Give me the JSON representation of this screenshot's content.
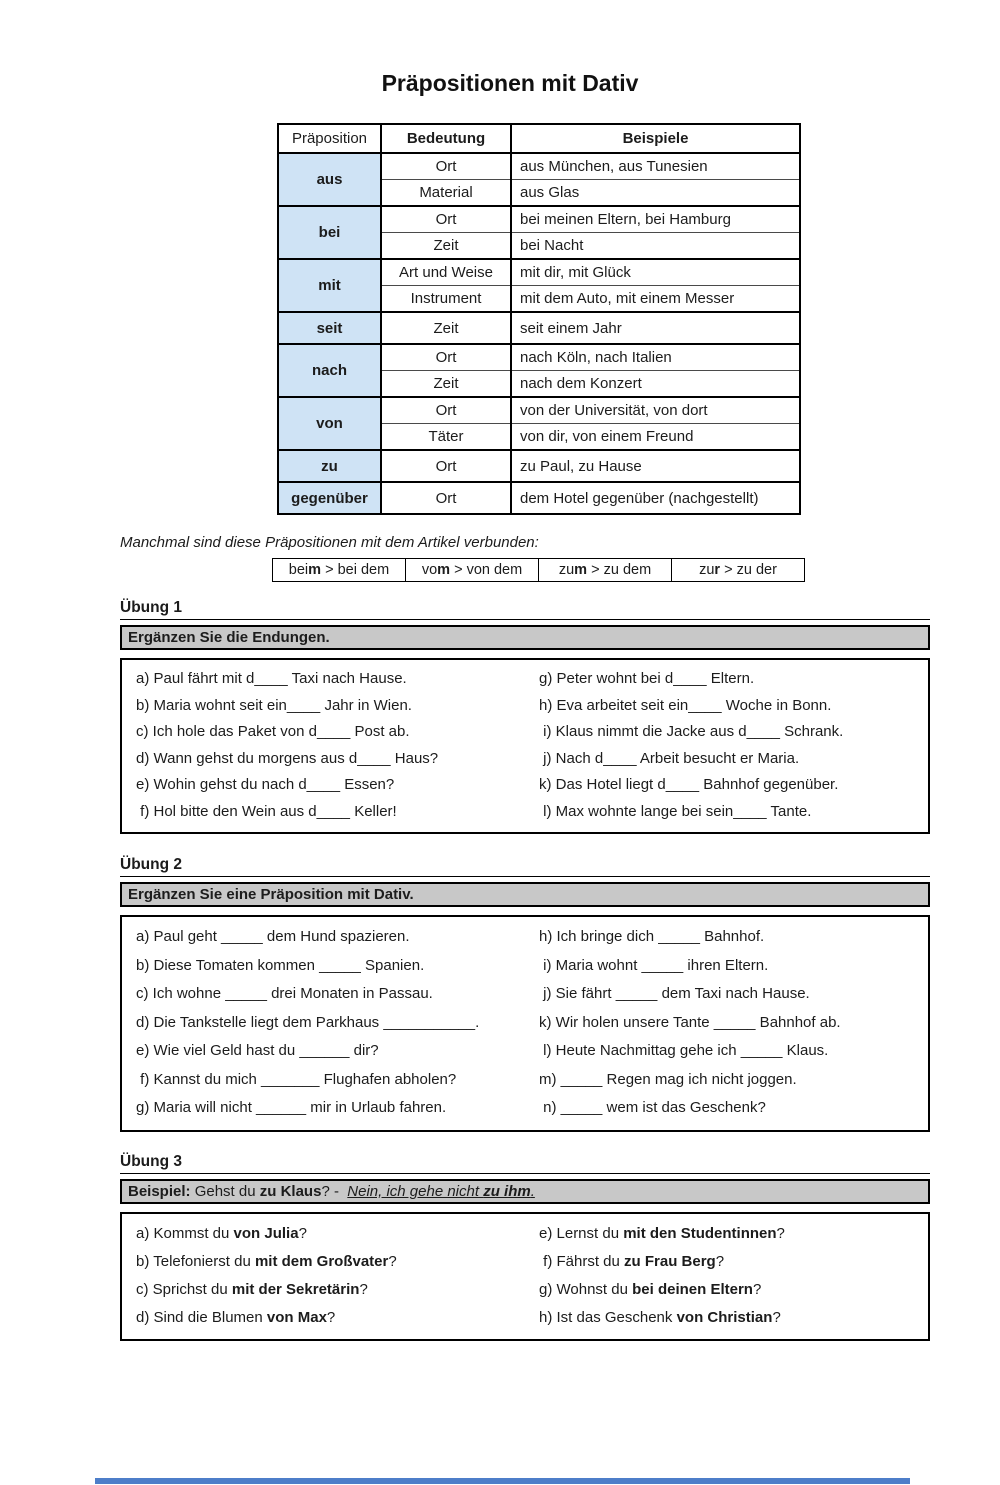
{
  "title": "Präpositionen mit Dativ",
  "table": {
    "headers": [
      "Präposition",
      "Bedeutung",
      "Beispiele"
    ],
    "groups": [
      {
        "prep": "aus",
        "rows": [
          [
            "Ort",
            "aus München, aus Tunesien"
          ],
          [
            "Material",
            "aus Glas"
          ]
        ]
      },
      {
        "prep": "bei",
        "rows": [
          [
            "Ort",
            "bei meinen Eltern, bei Hamburg"
          ],
          [
            "Zeit",
            "bei Nacht"
          ]
        ]
      },
      {
        "prep": "mit",
        "rows": [
          [
            "Art und Weise",
            "mit dir, mit Glück"
          ],
          [
            "Instrument",
            "mit dem Auto, mit einem Messer"
          ]
        ]
      },
      {
        "prep": "seit",
        "rows": [
          [
            "Zeit",
            "seit einem Jahr"
          ]
        ]
      },
      {
        "prep": "nach",
        "rows": [
          [
            "Ort",
            "nach Köln, nach Italien"
          ],
          [
            "Zeit",
            "nach dem Konzert"
          ]
        ]
      },
      {
        "prep": "von",
        "rows": [
          [
            "Ort",
            "von der Universität, von dort"
          ],
          [
            "Täter",
            "von dir, von einem Freund"
          ]
        ]
      },
      {
        "prep": "zu",
        "rows": [
          [
            "Ort",
            "zu Paul, zu Hause"
          ]
        ]
      },
      {
        "prep": "gegenüber",
        "rows": [
          [
            "Ort",
            "dem Hotel gegenüber (nachgestellt)"
          ]
        ]
      }
    ]
  },
  "note": "Manchmal sind diese Präpositionen mit dem Artikel verbunden:",
  "contractions": [
    {
      "pre": "bei",
      "bold": "m",
      "rest": " > bei dem"
    },
    {
      "pre": "vo",
      "bold": "m",
      "rest": " > von dem"
    },
    {
      "pre": "zu",
      "bold": "m",
      "rest": " > zu dem"
    },
    {
      "pre": "zu",
      "bold": "r",
      "rest": " > zu der"
    }
  ],
  "uebung1": {
    "label": "Übung 1",
    "instruction": "Ergänzen Sie die Endungen.",
    "left": [
      "a) Paul fährt mit d____ Taxi nach Hause.",
      "b) Maria wohnt seit ein____ Jahr in Wien.",
      "c) Ich hole das Paket von d____ Post ab.",
      "d) Wann gehst du morgens aus d____ Haus?",
      "e) Wohin gehst du nach d____ Essen?",
      " f) Hol bitte den Wein aus d____ Keller!"
    ],
    "right": [
      "g) Peter wohnt bei d____ Eltern.",
      "h) Eva arbeitet seit ein____ Woche in Bonn.",
      " i) Klaus nimmt die Jacke aus d____ Schrank.",
      " j) Nach d____ Arbeit besucht er Maria.",
      "k) Das Hotel liegt d____ Bahnhof gegenüber.",
      " l) Max wohnte lange bei sein____ Tante."
    ]
  },
  "uebung2": {
    "label": "Übung 2",
    "instruction": "Ergänzen Sie eine Präposition mit Dativ.",
    "left": [
      "a) Paul geht _____ dem Hund spazieren.",
      "b) Diese Tomaten kommen _____ Spanien.",
      "c) Ich wohne _____ drei Monaten in Passau.",
      "d) Die Tankstelle liegt dem Parkhaus ___________.",
      "e) Wie viel Geld hast du ______ dir?",
      " f) Kannst du mich _______ Flughafen abholen?",
      "g) Maria will nicht ______ mir in Urlaub fahren."
    ],
    "right": [
      "h) Ich bringe dich _____ Bahnhof.",
      " i) Maria wohnt _____ ihren Eltern.",
      " j) Sie fährt _____ dem Taxi nach Hause.",
      "k) Wir holen unsere Tante _____ Bahnhof ab.",
      " l) Heute Nachmittag gehe ich _____ Klaus.",
      "m) _____ Regen mag ich nicht joggen.",
      " n) _____ wem ist das Geschenk?"
    ]
  },
  "uebung3": {
    "label": "Übung 3",
    "beispiel": {
      "label": "Beispiel:",
      "pre": " Gehst du ",
      "bold": "zu Klaus",
      "mid": "? -  ",
      "ans_pre": "Nein, ich gehe nicht ",
      "ans_bold": "zu ihm",
      "ans_post": "."
    },
    "left": [
      {
        "pre": "a) Kommst du ",
        "bold": "von Julia",
        "post": "?"
      },
      {
        "pre": "b) Telefonierst du ",
        "bold": "mit dem Großvater",
        "post": "?"
      },
      {
        "pre": "c) Sprichst du ",
        "bold": "mit der Sekretärin",
        "post": "?"
      },
      {
        "pre": "d) Sind die Blumen ",
        "bold": "von Max",
        "post": "?"
      }
    ],
    "right": [
      {
        "pre": "e) Lernst du ",
        "bold": "mit den Studentinnen",
        "post": "?"
      },
      {
        "pre": " f) Fährst du ",
        "bold": "zu Frau Berg",
        "post": "?"
      },
      {
        "pre": "g) Wohnst du ",
        "bold": "bei deinen Eltern",
        "post": "?"
      },
      {
        "pre": "h) Ist das Geschenk ",
        "bold": "von Christian",
        "post": "?"
      }
    ]
  },
  "colors": {
    "prep_cell_blue": "#cfe3f5",
    "instruction_bar_gray": "#c8c8c8",
    "footer_blue": "#4d7ec9"
  }
}
